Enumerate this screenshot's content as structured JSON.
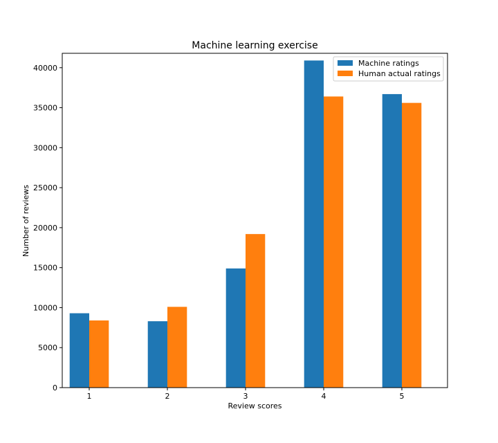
{
  "chart_data": {
    "type": "bar",
    "title": "Machine learning exercise",
    "xlabel": "Review scores",
    "ylabel": "Number of reviews",
    "categories": [
      "1",
      "2",
      "3",
      "4",
      "5"
    ],
    "series": [
      {
        "name": "Machine ratings",
        "color": "#1f77b4",
        "values": [
          9300,
          8300,
          14900,
          40900,
          36700
        ]
      },
      {
        "name": "Human actual ratings",
        "color": "#ff7f0e",
        "values": [
          8400,
          10100,
          19200,
          36400,
          35600
        ]
      }
    ],
    "ylim": [
      0,
      41800
    ],
    "yticks": [
      0,
      5000,
      10000,
      15000,
      20000,
      25000,
      30000,
      35000,
      40000
    ],
    "grid": false,
    "legend_position": "top-right"
  }
}
